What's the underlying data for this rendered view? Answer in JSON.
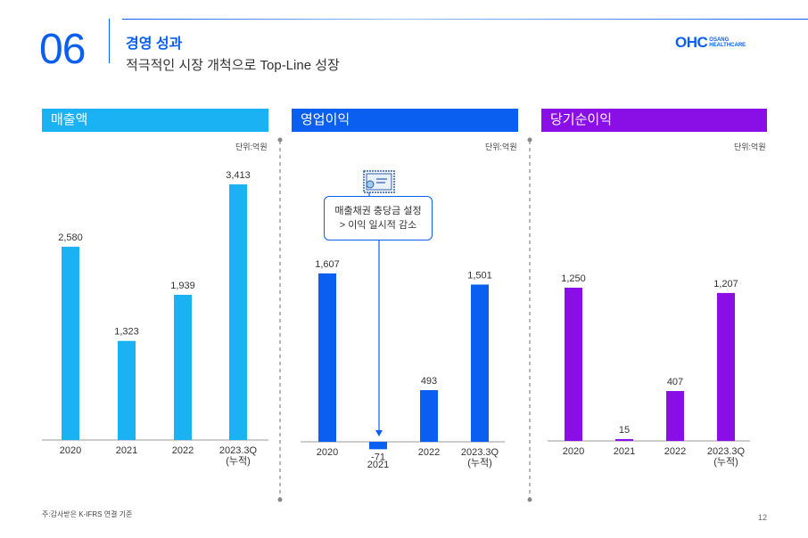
{
  "header": {
    "section_number": "06",
    "title": "경영 성과",
    "subtitle": "적극적인 시장 개척으로 Top-Line 성장",
    "logo": {
      "mark": "OHC",
      "line1": "OSANG",
      "line2": "HEALTHCARE"
    }
  },
  "panels": [
    {
      "title": "매출액",
      "unit": "단위:억원",
      "color": "#1ab2f3"
    },
    {
      "title": "영업이익",
      "unit": "단위:억원",
      "color": "#0a5ef0"
    },
    {
      "title": "당기순이익",
      "unit": "단위:억원",
      "color": "#8a0ee6"
    }
  ],
  "callout": {
    "line1": "매출채권 충당금 설정",
    "line2": "> 이익 일시적 감소",
    "icon": "certificate-icon"
  },
  "footnote": "주:감사받은 K-IFRS 연결 기준",
  "page_number": "12",
  "chart_data": [
    {
      "type": "bar",
      "title": "매출액",
      "unit": "억원",
      "categories": [
        "2020",
        "2021",
        "2022",
        "2023.3Q\n(누적)"
      ],
      "values": [
        2580,
        1323,
        1939,
        3413
      ],
      "labels": [
        "2,580",
        "1,323",
        "1,939",
        "3,413"
      ],
      "color": "#1ab2f3"
    },
    {
      "type": "bar",
      "title": "영업이익",
      "unit": "억원",
      "categories": [
        "2020",
        "2021",
        "2022",
        "2023.3Q\n(누적)"
      ],
      "values": [
        1607,
        -71,
        493,
        1501
      ],
      "labels": [
        "1,607",
        "-71",
        "493",
        "1,501"
      ],
      "color": "#0a5ef0"
    },
    {
      "type": "bar",
      "title": "당기순이익",
      "unit": "억원",
      "categories": [
        "2020",
        "2021",
        "2022",
        "2023.3Q\n(누적)"
      ],
      "values": [
        1250,
        15,
        407,
        1207
      ],
      "labels": [
        "1,250",
        "15",
        "407",
        "1,207"
      ],
      "color": "#8a0ee6"
    }
  ]
}
